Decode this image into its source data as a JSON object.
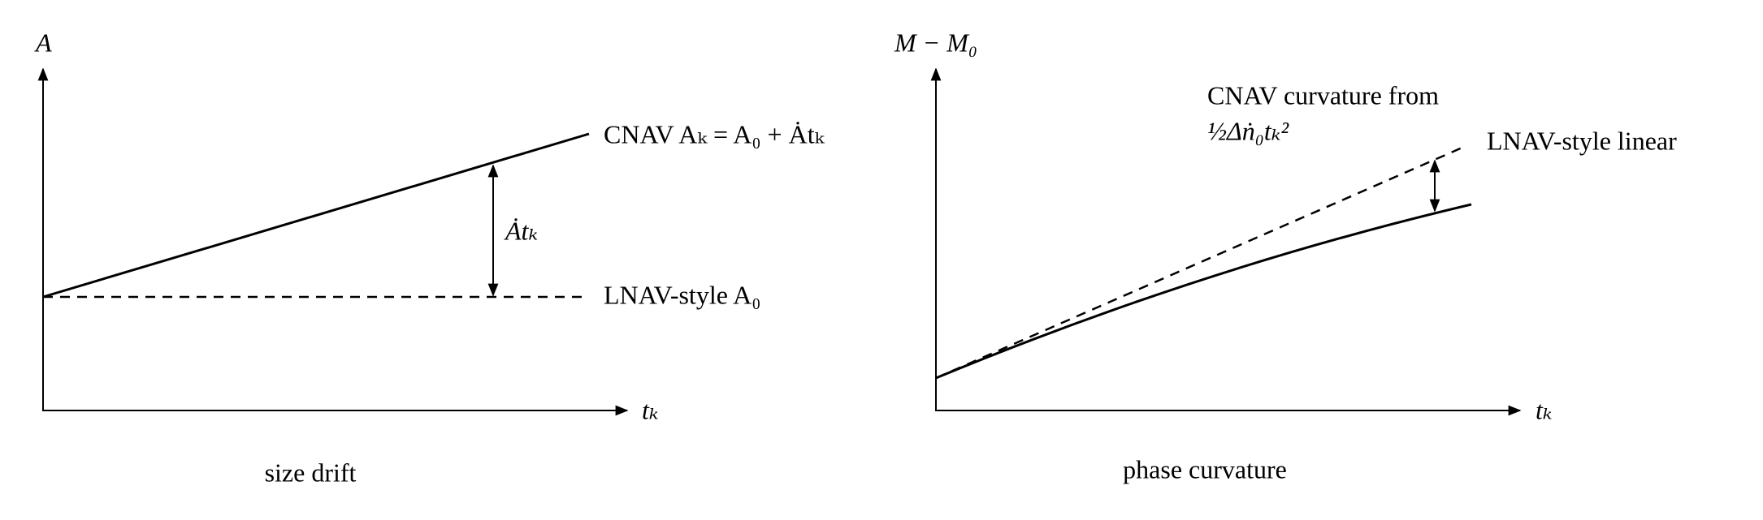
{
  "panels": [
    {
      "y_label": "A",
      "x_label": "tₖ",
      "caption": "size drift",
      "curve_label": "CNAV Aₖ = A₀ + Ȧtₖ",
      "baseline_label": "LNAV-style A₀",
      "gap_label": "Ȧtₖ"
    },
    {
      "y_label": "M − M₀",
      "x_label": "tₖ",
      "caption": "phase curvature",
      "curve_label_line1": "CNAV curvature from",
      "curve_label_line2": "½Δṅ₀tₖ²",
      "baseline_label": "LNAV-style linear"
    }
  ]
}
